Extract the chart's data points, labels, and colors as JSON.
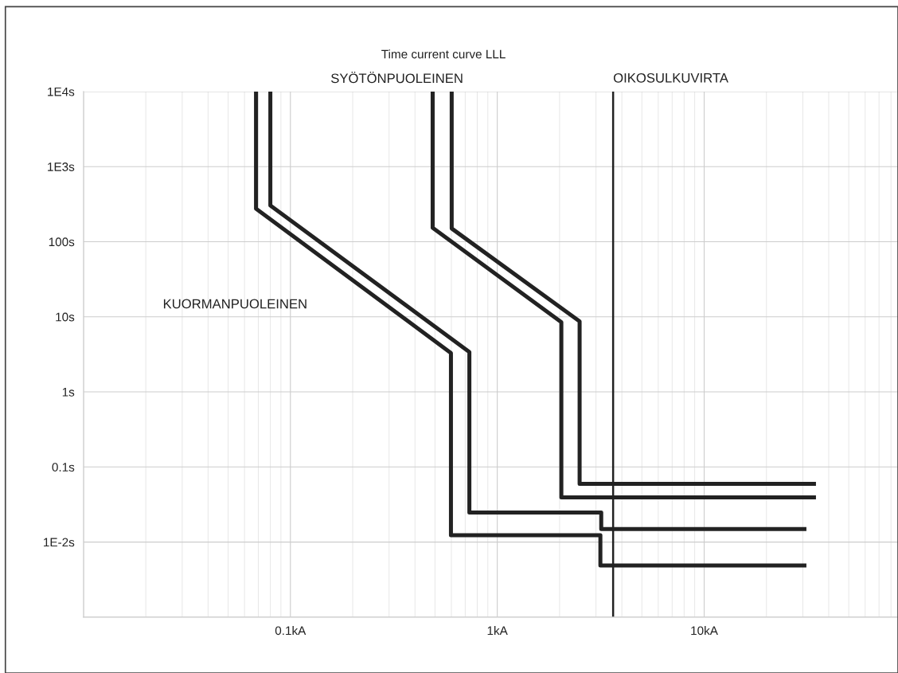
{
  "chart_data": {
    "type": "line",
    "title": "Time current curve LLL",
    "series": [
      {
        "color": "#222222",
        "x": [
          0.0682,
          0.0682,
          0.597,
          0.597,
          3.15,
          3.15,
          31.2
        ],
        "values": [
          10000,
          275,
          3.3,
          0.0123,
          0.0123,
          0.00487,
          0.00487
        ]
      },
      {
        "color": "#222222",
        "x": [
          0.08,
          0.08,
          0.733,
          0.733,
          3.18,
          3.18,
          31.2
        ],
        "values": [
          10000,
          303,
          3.4,
          0.0248,
          0.0248,
          0.0149,
          0.0149
        ]
      },
      {
        "color": "#222222",
        "x": [
          0.487,
          0.487,
          2.04,
          2.04,
          34.7
        ],
        "values": [
          10000,
          153,
          8.5,
          0.0394,
          0.0394
        ]
      },
      {
        "color": "#222222",
        "x": [
          0.602,
          0.602,
          2.5,
          2.5,
          34.7
        ],
        "values": [
          10000,
          150,
          8.7,
          0.0596,
          0.0596
        ]
      }
    ],
    "ref_lines": [
      {
        "axis": "x",
        "value": 3.63,
        "label": "OIKOSULKUVIRTA",
        "color": "#222222",
        "line_style": "solid"
      }
    ],
    "annotations": [
      "KUORMANPUOLEINEN",
      "SYÖTÖNPUOLEINEN"
    ],
    "log": "xy",
    "xlim": [
      0.01,
      90
    ],
    "ylim": [
      0.001,
      10000
    ],
    "xticks": [
      {
        "value": 0.01,
        "label": null
      },
      {
        "value": 0.1,
        "label": "0.1kA"
      },
      {
        "value": 1,
        "label": "1kA"
      },
      {
        "value": 10,
        "label": "10kA"
      }
    ],
    "yticks": [
      {
        "value": 0.001,
        "label": null
      },
      {
        "value": 0.01,
        "label": "1E-2s"
      },
      {
        "value": 0.1,
        "label": "0.1s"
      },
      {
        "value": 1,
        "label": "1s"
      },
      {
        "value": 10,
        "label": "10s"
      },
      {
        "value": 100,
        "label": "100s"
      },
      {
        "value": 1000,
        "label": "1E3s"
      },
      {
        "value": 10000,
        "label": "1E4s"
      }
    ],
    "grid": true,
    "marker": "none",
    "line_style": "solid",
    "legend": false
  }
}
